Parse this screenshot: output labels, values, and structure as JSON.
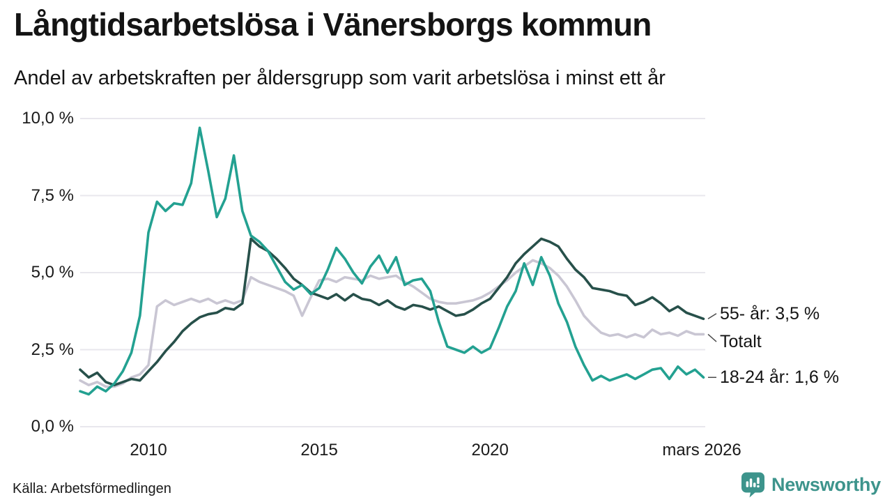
{
  "header": {
    "title": "Långtidsarbetslösa i Vänersborgs kommun",
    "subtitle": "Andel av arbetskraften per åldersgrupp som varit arbetslösa i minst ett år"
  },
  "footer": {
    "source": "Källa: Arbetsförmedlingen",
    "brand": "Newsworthy",
    "brand_color": "#3d948c"
  },
  "chart_data": {
    "type": "line",
    "title": "Långtidsarbetslösa i Vänersborgs kommun",
    "subtitle": "Andel av arbetskraften per åldersgrupp som varit arbetslösa i minst ett år",
    "unit": "%",
    "xlim": [
      2008,
      2026.3
    ],
    "ylim": [
      0,
      10
    ],
    "grid": true,
    "legend_position": "right-end-labels",
    "y_ticks": [
      {
        "value": 0,
        "label": "0,0 %"
      },
      {
        "value": 2.5,
        "label": "2,5 %"
      },
      {
        "value": 5,
        "label": "5,0 %"
      },
      {
        "value": 7.5,
        "label": "7,5 %"
      },
      {
        "value": 10,
        "label": "10,0 %"
      }
    ],
    "x_ticks": [
      {
        "value": 2010,
        "label": "2010"
      },
      {
        "value": 2015,
        "label": "2015"
      },
      {
        "value": 2020,
        "label": "2020"
      },
      {
        "value": 2026.2,
        "label": "mars 2026"
      }
    ],
    "x": [
      2008,
      2008.25,
      2008.5,
      2008.75,
      2009,
      2009.25,
      2009.5,
      2009.75,
      2010,
      2010.25,
      2010.5,
      2010.75,
      2011,
      2011.25,
      2011.5,
      2011.75,
      2012,
      2012.25,
      2012.5,
      2012.75,
      2013,
      2013.25,
      2013.5,
      2013.75,
      2014,
      2014.25,
      2014.5,
      2014.75,
      2015,
      2015.25,
      2015.5,
      2015.75,
      2016,
      2016.25,
      2016.5,
      2016.75,
      2017,
      2017.25,
      2017.5,
      2017.75,
      2018,
      2018.25,
      2018.5,
      2018.75,
      2019,
      2019.25,
      2019.5,
      2019.75,
      2020,
      2020.25,
      2020.5,
      2020.75,
      2021,
      2021.25,
      2021.5,
      2021.75,
      2022,
      2022.25,
      2022.5,
      2022.75,
      2023,
      2023.25,
      2023.5,
      2023.75,
      2024,
      2024.25,
      2024.5,
      2024.75,
      2025,
      2025.25,
      2025.5,
      2025.75,
      2026,
      2026.25
    ],
    "series": [
      {
        "name": "Totalt",
        "color": "#c9c6d3",
        "end_value": null,
        "values": [
          1.5,
          1.35,
          1.45,
          1.3,
          1.3,
          1.4,
          1.6,
          1.7,
          2.0,
          3.9,
          4.1,
          3.95,
          4.05,
          4.15,
          4.05,
          4.15,
          4.0,
          4.1,
          4.0,
          4.1,
          4.85,
          4.7,
          4.6,
          4.5,
          4.4,
          4.25,
          3.6,
          4.2,
          4.75,
          4.8,
          4.7,
          4.85,
          4.8,
          4.75,
          4.9,
          4.8,
          4.85,
          4.9,
          4.7,
          4.55,
          4.35,
          4.15,
          4.05,
          4.0,
          4.0,
          4.05,
          4.1,
          4.2,
          4.35,
          4.55,
          4.75,
          5.0,
          5.2,
          5.4,
          5.3,
          5.15,
          4.9,
          4.55,
          4.1,
          3.6,
          3.3,
          3.05,
          2.95,
          3.0,
          2.9,
          3.0,
          2.9,
          3.15,
          3.0,
          3.05,
          2.95,
          3.1,
          3.0,
          3.0
        ]
      },
      {
        "name": "55- år",
        "color": "#27504a",
        "end_value": 3.5,
        "values": [
          1.85,
          1.6,
          1.75,
          1.45,
          1.35,
          1.45,
          1.55,
          1.5,
          1.8,
          2.1,
          2.45,
          2.75,
          3.1,
          3.35,
          3.55,
          3.65,
          3.7,
          3.85,
          3.8,
          4.0,
          6.1,
          5.85,
          5.7,
          5.45,
          5.15,
          4.8,
          4.6,
          4.35,
          4.25,
          4.15,
          4.3,
          4.1,
          4.3,
          4.15,
          4.1,
          3.95,
          4.1,
          3.9,
          3.8,
          3.95,
          3.9,
          3.8,
          3.9,
          3.75,
          3.6,
          3.65,
          3.8,
          4.0,
          4.15,
          4.5,
          4.85,
          5.3,
          5.6,
          5.85,
          6.1,
          6.0,
          5.85,
          5.45,
          5.1,
          4.85,
          4.5,
          4.45,
          4.4,
          4.3,
          4.25,
          3.95,
          4.05,
          4.2,
          4.0,
          3.75,
          3.9,
          3.7,
          3.6,
          3.5
        ]
      },
      {
        "name": "18-24 år",
        "color": "#23a191",
        "end_value": 1.6,
        "values": [
          1.15,
          1.05,
          1.3,
          1.15,
          1.4,
          1.8,
          2.4,
          3.6,
          6.3,
          7.3,
          7.0,
          7.25,
          7.2,
          7.9,
          9.7,
          8.3,
          6.8,
          7.4,
          8.8,
          7.0,
          6.2,
          6.0,
          5.7,
          5.2,
          4.7,
          4.45,
          4.6,
          4.3,
          4.5,
          5.1,
          5.8,
          5.45,
          5.0,
          4.65,
          5.2,
          5.55,
          5.0,
          5.5,
          4.6,
          4.75,
          4.8,
          4.4,
          3.4,
          2.6,
          2.5,
          2.4,
          2.6,
          2.4,
          2.55,
          3.2,
          3.9,
          4.4,
          5.3,
          4.6,
          5.5,
          4.9,
          4.0,
          3.4,
          2.6,
          2.0,
          1.5,
          1.65,
          1.5,
          1.6,
          1.7,
          1.55,
          1.7,
          1.85,
          1.9,
          1.55,
          1.95,
          1.7,
          1.85,
          1.6
        ]
      }
    ],
    "annotations": [
      {
        "text": "55- år: 3,5 %",
        "series_index": 1,
        "label_value": 3.67
      },
      {
        "text": "Totalt",
        "series_index": 0,
        "label_value": 2.76
      },
      {
        "text": "18-24 år: 1,6 %",
        "series_index": 2,
        "label_value": 1.6
      }
    ]
  }
}
